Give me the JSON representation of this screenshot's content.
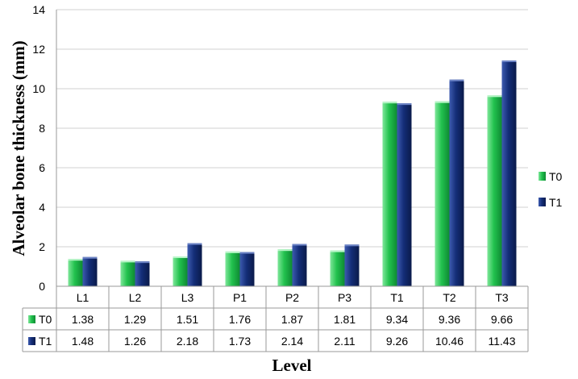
{
  "chart_data": {
    "type": "bar",
    "title": "",
    "xlabel": "Level",
    "ylabel": "Alveolar bone thickness (mm)",
    "ylim": [
      0,
      14
    ],
    "yticks": [
      0,
      2,
      4,
      6,
      8,
      10,
      12,
      14
    ],
    "grid": true,
    "legend_position": "right",
    "categories": [
      "L1",
      "L2",
      "L3",
      "P1",
      "P2",
      "P3",
      "T1",
      "T2",
      "T3"
    ],
    "series": [
      {
        "name": "T0",
        "color": "#1FBF4A",
        "values": [
          1.38,
          1.29,
          1.51,
          1.76,
          1.87,
          1.81,
          9.34,
          9.36,
          9.66
        ],
        "labels": [
          "1.38",
          "1.29",
          "1.51",
          "1.76",
          "1.87",
          "1.81",
          "9.34",
          "9.36",
          "9.66"
        ]
      },
      {
        "name": "T1",
        "color": "#12296E",
        "values": [
          1.48,
          1.26,
          2.18,
          1.73,
          2.14,
          2.11,
          9.26,
          10.46,
          11.43
        ],
        "labels": [
          "1.48",
          "1.26",
          "2.18",
          "1.73",
          "2.14",
          "2.11",
          "9.26",
          "10.46",
          "11.43"
        ]
      }
    ]
  }
}
